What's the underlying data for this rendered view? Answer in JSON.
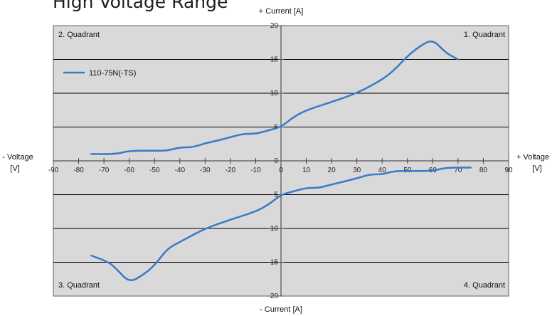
{
  "title": "High Voltage Range",
  "chart_data": {
    "type": "line",
    "title": "High Voltage Range",
    "x_axis": {
      "label_positive": "+ Voltage [V]",
      "label_negative": "- Voltage [V]",
      "range": [
        -90,
        90
      ],
      "ticks": [
        "-90",
        "-80",
        "-70",
        "-60",
        "-50",
        "-40",
        "-30",
        "-20",
        "-10",
        "0",
        "10",
        "20",
        "30",
        "40",
        "50",
        "60",
        "70",
        "80",
        "90"
      ]
    },
    "y_axis": {
      "label_positive": "+ Current [A]",
      "label_negative": "- Current [A]",
      "range": [
        -20,
        20
      ],
      "ticks": [
        "20",
        "15",
        "10",
        "5",
        "0",
        "-5",
        "-10",
        "-15",
        "-20"
      ]
    },
    "grid": "horizontal",
    "quadrants": [
      "1. Quadrant",
      "2. Quadrant",
      "3. Quadrant",
      "4. Quadrant"
    ],
    "legend": {
      "placement": "top-left",
      "entries": [
        "110-75N(-TS)"
      ]
    },
    "colors": {
      "series": "#3a7bc8",
      "plot_background": "#d9d9d9",
      "grid": "#000000"
    },
    "series": [
      {
        "name": "110-75N(-TS)",
        "points": [
          [
            -75,
            1
          ],
          [
            -65,
            1
          ],
          [
            -60,
            1.5
          ],
          [
            -50,
            1.5
          ],
          [
            -45,
            1.5
          ],
          [
            -40,
            2
          ],
          [
            -35,
            2
          ],
          [
            -30,
            2.6
          ],
          [
            -25,
            3
          ],
          [
            -20,
            3.5
          ],
          [
            -15,
            4
          ],
          [
            -10,
            4
          ],
          [
            -5,
            4.5
          ],
          [
            0,
            5
          ],
          [
            5,
            6.5
          ],
          [
            10,
            7.5
          ],
          [
            20,
            8.7
          ],
          [
            30,
            10
          ],
          [
            40,
            12
          ],
          [
            45,
            13.5
          ],
          [
            50,
            15.5
          ],
          [
            55,
            17
          ],
          [
            60,
            18
          ],
          [
            65,
            16
          ],
          [
            70,
            15
          ]
        ]
      },
      {
        "name": "110-75N(-TS)",
        "points": [
          [
            -75,
            -14
          ],
          [
            -68,
            -15
          ],
          [
            -65,
            -16
          ],
          [
            -60,
            -18
          ],
          [
            -55,
            -17
          ],
          [
            -50,
            -15.5
          ],
          [
            -45,
            -13
          ],
          [
            -40,
            -12
          ],
          [
            -30,
            -10
          ],
          [
            -20,
            -8.7
          ],
          [
            -10,
            -7.5
          ],
          [
            -5,
            -6.5
          ],
          [
            0,
            -5
          ],
          [
            5,
            -4.5
          ],
          [
            10,
            -4
          ],
          [
            15,
            -4
          ],
          [
            20,
            -3.5
          ],
          [
            30,
            -2.6
          ],
          [
            35,
            -2
          ],
          [
            40,
            -2
          ],
          [
            45,
            -1.5
          ],
          [
            50,
            -1.5
          ],
          [
            60,
            -1.5
          ],
          [
            65,
            -1
          ],
          [
            75,
            -1
          ]
        ]
      }
    ]
  }
}
